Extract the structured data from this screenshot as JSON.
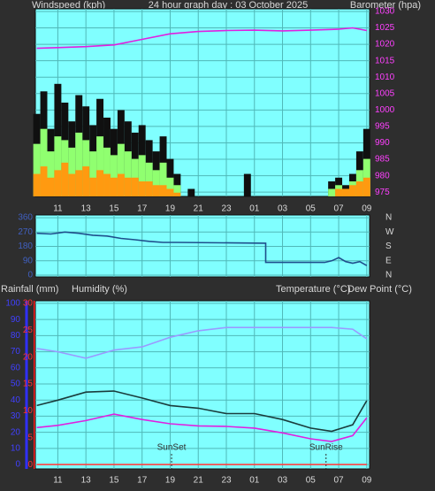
{
  "chart_data": [
    {
      "type": "line",
      "title": "24 hour graph day : 03 October 2025",
      "ylabel": "Windspeed (kph)",
      "x": [
        9.5,
        10,
        10.5,
        11,
        11.5,
        12,
        12.5,
        13,
        13.5,
        14,
        14.5,
        15,
        15.5,
        16,
        16.5,
        17,
        17.5,
        18,
        18.5,
        19,
        19.5,
        20,
        20.5,
        21,
        21.5,
        22,
        22.5,
        23,
        23.5,
        24,
        24.5,
        25,
        25.5,
        26,
        26.5,
        27,
        27.5,
        28,
        28.5,
        29,
        29.5,
        30,
        30.5,
        31,
        31.5,
        32,
        32.5,
        33
      ],
      "xlim": [
        9.4,
        33.2
      ],
      "xticks": [
        11,
        13,
        15,
        17,
        19,
        21,
        23,
        {
          "value": 25,
          "label": "01"
        },
        {
          "value": 27,
          "label": "03"
        },
        {
          "value": 29,
          "label": "05"
        },
        {
          "value": 31,
          "label": "07"
        },
        {
          "value": 33,
          "label": "09"
        }
      ],
      "ylim": [
        0,
        50
      ],
      "y2lim": [
        973.7,
        1030.8
      ],
      "y2ticks": [
        975,
        980,
        985,
        990,
        995,
        1000,
        1005,
        1010,
        1015,
        1020,
        1025,
        1030
      ],
      "grid": true,
      "series": [
        {
          "type": "bar",
          "color": "#101010",
          "values": [
            22,
            28,
            18,
            30,
            25,
            20,
            27,
            24,
            19,
            26,
            21,
            18,
            23,
            20,
            17,
            19,
            15,
            12,
            16,
            10,
            6,
            0,
            2,
            0,
            0,
            0,
            0,
            0,
            0,
            0,
            6,
            0,
            0,
            0,
            0,
            0,
            0,
            0,
            0,
            0,
            0,
            0,
            4,
            5,
            3,
            6,
            12,
            18
          ]
        },
        {
          "type": "bar",
          "color": "#90ff70",
          "values": [
            14,
            18,
            12,
            16,
            15,
            13,
            17,
            15,
            12,
            16,
            13,
            11,
            14,
            12,
            10,
            11,
            9,
            7,
            9,
            5,
            3,
            0,
            0,
            0,
            0,
            0,
            0,
            0,
            0,
            0,
            0,
            0,
            0,
            0,
            0,
            0,
            0,
            0,
            0,
            0,
            0,
            0,
            2,
            3,
            2,
            4,
            7,
            10
          ]
        },
        {
          "type": "bar",
          "color": "#ff9a10",
          "values": [
            6,
            8,
            5,
            7,
            9,
            6,
            7,
            8,
            5,
            7,
            6,
            5,
            6,
            5,
            5,
            4,
            4,
            3,
            3,
            2,
            1,
            0,
            0,
            0,
            0,
            0,
            0,
            0,
            0,
            0,
            0,
            0,
            0,
            0,
            0,
            0,
            0,
            0,
            0,
            0,
            0,
            0,
            0,
            2,
            2,
            3,
            4,
            5
          ]
        },
        {
          "name": "Barometer (hpa)",
          "color": "#e020e0",
          "axis": "y2",
          "x": [
            9.5,
            11,
            13,
            15,
            17,
            19,
            21,
            23,
            25,
            27,
            29,
            31,
            32,
            33
          ],
          "values": [
            1018.8,
            1019,
            1019.3,
            1019.8,
            1021.5,
            1023.2,
            1023.9,
            1024.2,
            1024.3,
            1024.1,
            1024.3,
            1024.6,
            1025,
            1024.2
          ]
        }
      ]
    },
    {
      "type": "line",
      "x": [
        9.5,
        10.5,
        11.5,
        12.5,
        13.5,
        14.5,
        15.5,
        16.5,
        17.5,
        18.5,
        19.5,
        25.8,
        25.8,
        30,
        30.5,
        31,
        31.5,
        32,
        32.5,
        33
      ],
      "xlim": [
        9.4,
        33.2
      ],
      "xticks": [
        11,
        13,
        15,
        17,
        19,
        21,
        23,
        25,
        27,
        29,
        31,
        33
      ],
      "ylim": [
        -11,
        377
      ],
      "yticks": [
        0,
        90,
        180,
        270,
        360
      ],
      "y2lim": [
        -11,
        377
      ],
      "y2ticks": [
        {
          "value": 360,
          "label": "N"
        },
        {
          "value": 270,
          "label": "W"
        },
        {
          "value": 180,
          "label": "S"
        },
        {
          "value": 90,
          "label": "E"
        },
        {
          "value": 0,
          "label": "N"
        }
      ],
      "grid": true,
      "series": [
        {
          "color": "#1f4e8c",
          "values": [
            262,
            258,
            270,
            262,
            250,
            245,
            230,
            222,
            212,
            205,
            205,
            200,
            80,
            80,
            90,
            110,
            85,
            75,
            85,
            60
          ]
        }
      ]
    },
    {
      "type": "line",
      "x": [
        9.5,
        11,
        13,
        15,
        17,
        19,
        21,
        23,
        25,
        27,
        29,
        30.5,
        32,
        33
      ],
      "xlim": [
        9.4,
        33.2
      ],
      "xticks": [
        11,
        13,
        15,
        17,
        19,
        21,
        23,
        {
          "value": 25,
          "label": "01"
        },
        {
          "value": 27,
          "label": "03"
        },
        {
          "value": 29,
          "label": "05"
        },
        {
          "value": 31,
          "label": "07"
        },
        {
          "value": 33,
          "label": "09"
        }
      ],
      "ylim": [
        -2.7,
        101.6
      ],
      "yticks": [
        0,
        10,
        20,
        30,
        40,
        50,
        60,
        70,
        80,
        90,
        100
      ],
      "y2lim": [
        -0.8,
        30.5
      ],
      "y2ticks": [
        0,
        5,
        10,
        15,
        20,
        25,
        30
      ],
      "grid": true,
      "series": [
        {
          "name": "Rainfall (mm)",
          "color": "#ff4040",
          "axis": "y2",
          "values": [
            0,
            0,
            0,
            0,
            0,
            0,
            0,
            0,
            0,
            0,
            0,
            0,
            0,
            0
          ]
        },
        {
          "name": "Humidity (%)",
          "color": "#9a9aff",
          "values": [
            72,
            70,
            66,
            71,
            73,
            79,
            83,
            85,
            85,
            85,
            85,
            85,
            84,
            78
          ]
        },
        {
          "name": "Temperature (°C)",
          "color": "#1a3c3c",
          "axis": "y2",
          "values": [
            11,
            12,
            13.5,
            13.7,
            12.4,
            11,
            10.5,
            9.5,
            9.5,
            8.4,
            6.8,
            6.2,
            7.4,
            11.9
          ]
        },
        {
          "name": "Dew Point (°C)",
          "color": "#e020e0",
          "axis": "y2",
          "values": [
            6.9,
            7.3,
            8.2,
            9.4,
            8.4,
            7.6,
            7.2,
            7.1,
            6.8,
            5.9,
            4.8,
            4.3,
            5.4,
            8.7
          ]
        }
      ],
      "annotations": [
        {
          "text": "SunSet",
          "x": 19.1
        },
        {
          "text": "SunRise",
          "x": 30.1
        }
      ]
    }
  ]
}
